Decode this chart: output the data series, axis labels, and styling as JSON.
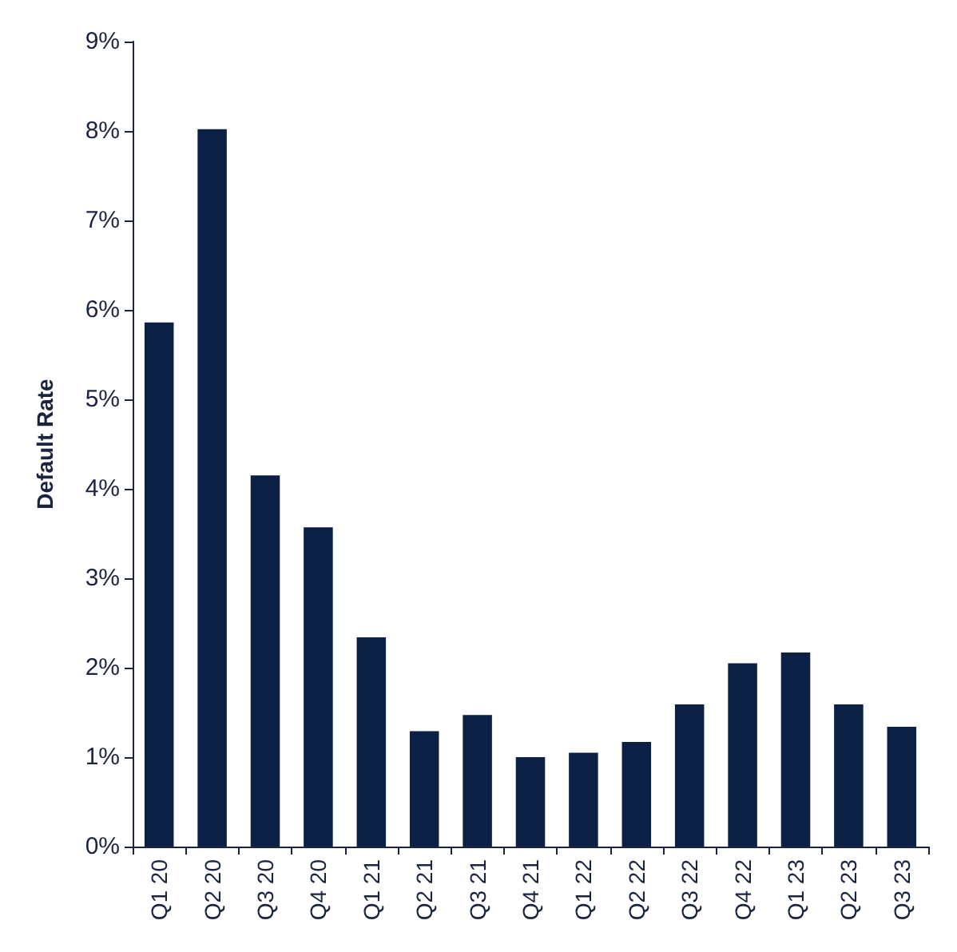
{
  "chart_data": {
    "type": "bar",
    "ylabel": "Default Rate",
    "categories": [
      "Q1 20",
      "Q2 20",
      "Q3 20",
      "Q4 20",
      "Q1 21",
      "Q2 21",
      "Q3 21",
      "Q4 21",
      "Q1 22",
      "Q2 22",
      "Q3 22",
      "Q4 22",
      "Q1 23",
      "Q2 23",
      "Q3 23"
    ],
    "values": [
      5.86,
      8.02,
      4.15,
      3.57,
      2.34,
      1.29,
      1.47,
      1.0,
      1.05,
      1.17,
      1.59,
      2.05,
      2.17,
      1.59,
      1.34
    ],
    "color": "#0c1f45",
    "ylim": [
      0,
      9
    ],
    "yticks": [
      {
        "value": 0,
        "label": "0%"
      },
      {
        "value": 1,
        "label": "1%"
      },
      {
        "value": 2,
        "label": "2%"
      },
      {
        "value": 3,
        "label": "3%"
      },
      {
        "value": 4,
        "label": "4%"
      },
      {
        "value": 5,
        "label": "5%"
      },
      {
        "value": 6,
        "label": "6%"
      },
      {
        "value": 7,
        "label": "7%"
      },
      {
        "value": 8,
        "label": "8%"
      },
      {
        "value": 9,
        "label": "9%"
      }
    ],
    "grid": false
  }
}
